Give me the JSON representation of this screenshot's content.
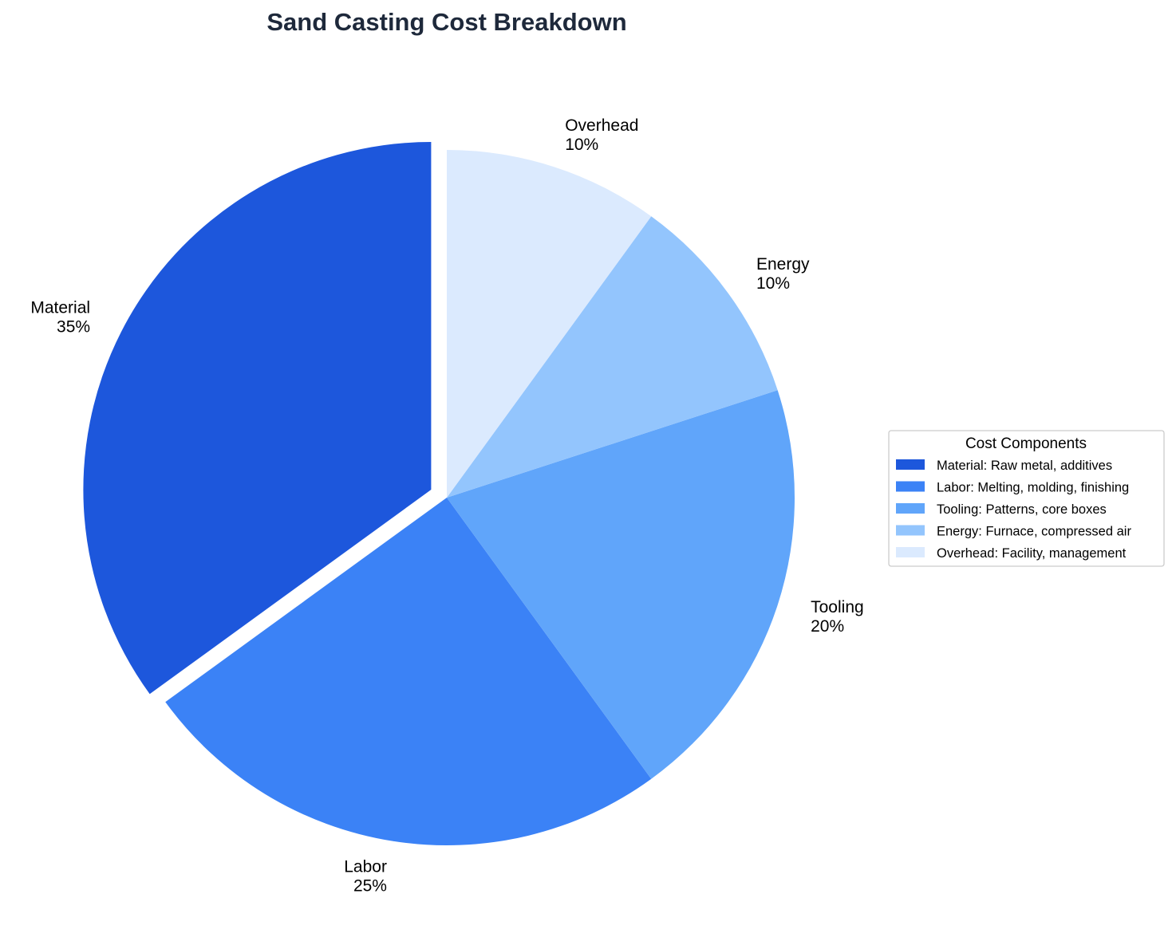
{
  "chart_data": {
    "type": "pie",
    "title": "Sand Casting Cost Breakdown",
    "start_angle_deg": 90,
    "direction": "counterclockwise",
    "categories": [
      "Material",
      "Labor",
      "Tooling",
      "Energy",
      "Overhead"
    ],
    "values": [
      35,
      25,
      20,
      10,
      10
    ],
    "value_labels": [
      "35%",
      "25%",
      "20%",
      "10%",
      "10%"
    ],
    "exploded": [
      "Material"
    ],
    "colors": [
      "#1d57dc",
      "#3b82f6",
      "#60a5fa",
      "#93c5fd",
      "#dbeafe"
    ],
    "legend": {
      "title": "Cost Components",
      "placement": "center-right",
      "entries": [
        "Material: Raw metal, additives",
        "Labor: Melting, molding, finishing",
        "Tooling: Patterns, core boxes",
        "Energy: Furnace, compressed air",
        "Overhead: Facility, management"
      ]
    }
  }
}
